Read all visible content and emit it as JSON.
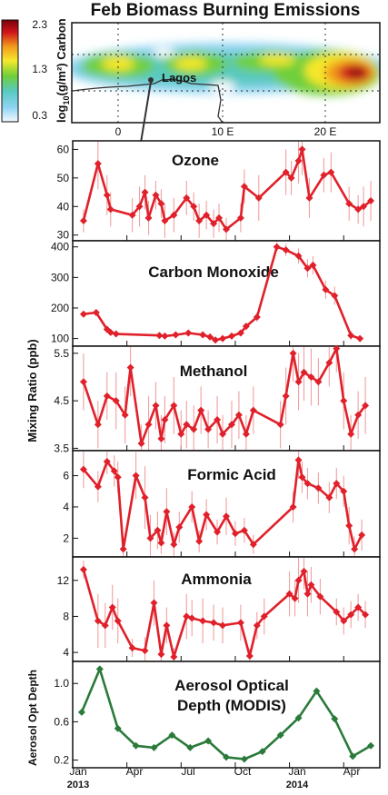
{
  "map": {
    "title": "Feb Biomass Burning Emissions",
    "colorbar_ticks": [
      "2.3",
      "1.3",
      "0.3"
    ],
    "colorbar_label_log": "log",
    "colorbar_label_sub": "10",
    "colorbar_label_rest": "(g/m²) Carbon",
    "city": "Lagos",
    "lon_ticks": [
      "0",
      "10 E",
      "20 E"
    ],
    "palette": [
      "#f4f8ff",
      "#8fd4f2",
      "#58c9c0",
      "#6fcf3a",
      "#f6e82c",
      "#f29a1e",
      "#d0141a",
      "#7a0008"
    ]
  },
  "shared": {
    "ylabel_mixing": "Mixing Ratio (ppb)",
    "ylabel_aod": "Aerosol Opt Depth",
    "x_ticks": [
      "Jan",
      "Apr",
      "Jul",
      "Oct",
      "Jan",
      "Apr"
    ],
    "x_years": [
      "2013",
      "2014"
    ]
  },
  "chart_data": [
    {
      "type": "line",
      "title": "Ozone",
      "ylabel": "Mixing Ratio (ppb)",
      "ylim": [
        28,
        63
      ],
      "yticks": [
        "30",
        "40",
        "50",
        "60"
      ],
      "color": "#e0202a",
      "x": [
        1.6,
        2.4,
        2.9,
        3.1,
        4.3,
        4.7,
        5.0,
        5.2,
        5.6,
        5.9,
        6.1,
        6.6,
        7.3,
        7.7,
        8.0,
        8.4,
        8.8,
        9.1,
        9.5,
        10.3,
        10.5,
        11.3,
        12.8,
        13.1,
        13.5,
        13.7,
        14.1,
        14.9,
        15.3,
        16.3,
        16.8,
        17.1,
        17.5
      ],
      "values": [
        35,
        55,
        44,
        39,
        37,
        40,
        45,
        36,
        44,
        41,
        35,
        37,
        43,
        40,
        35,
        37,
        34,
        36,
        32,
        36,
        47,
        43,
        52,
        50,
        56,
        60,
        43,
        51,
        52,
        41,
        39,
        40,
        42
      ],
      "errors": [
        4,
        9,
        7,
        6,
        6,
        7,
        6,
        6,
        5,
        5,
        6,
        6,
        6,
        5,
        6,
        5,
        5,
        5,
        4,
        5,
        6,
        8,
        8,
        6,
        8,
        9,
        7,
        6,
        7,
        6,
        5,
        7,
        7
      ]
    },
    {
      "type": "line",
      "title": "Carbon Monoxide",
      "ylabel": "Mixing Ratio (ppb)",
      "ylim": [
        75,
        420
      ],
      "yticks": [
        "100",
        "200",
        "300",
        "400"
      ],
      "color": "#e0202a",
      "x": [
        1.6,
        2.3,
        2.9,
        3.1,
        3.4,
        5.8,
        6.1,
        6.7,
        7.4,
        8.2,
        8.6,
        8.9,
        9.3,
        9.8,
        10.3,
        10.6,
        11.2,
        12.3,
        12.8,
        13.5,
        14.0,
        14.3,
        15.0,
        15.5,
        16.4,
        16.9
      ],
      "values": [
        180,
        185,
        130,
        120,
        115,
        110,
        108,
        112,
        118,
        112,
        105,
        95,
        100,
        108,
        118,
        140,
        170,
        400,
        390,
        370,
        330,
        340,
        260,
        240,
        110,
        100
      ],
      "errors": [
        6,
        6,
        10,
        10,
        10,
        8,
        8,
        8,
        8,
        8,
        8,
        8,
        8,
        10,
        10,
        12,
        15,
        15,
        20,
        25,
        30,
        30,
        30,
        30,
        15,
        10
      ]
    },
    {
      "type": "line",
      "title": "Methanol",
      "ylabel": "Mixing Ratio (ppb)",
      "ylim": [
        3.45,
        5.65
      ],
      "yticks": [
        "3.5",
        "4.5",
        "5.5"
      ],
      "color": "#e0202a",
      "x": [
        1.6,
        2.4,
        2.9,
        3.4,
        3.9,
        4.2,
        4.8,
        5.2,
        5.6,
        5.9,
        6.1,
        6.6,
        7.0,
        7.3,
        7.7,
        8.1,
        8.5,
        9.0,
        9.3,
        9.8,
        10.2,
        10.6,
        11.0,
        12.5,
        12.8,
        13.2,
        13.5,
        13.8,
        14.2,
        14.6,
        15.2,
        15.6,
        16.0,
        16.4,
        16.8,
        17.2
      ],
      "values": [
        4.9,
        4.0,
        4.6,
        4.5,
        4.2,
        5.2,
        3.6,
        4.0,
        4.4,
        3.7,
        4.1,
        4.4,
        3.8,
        4.0,
        3.9,
        4.3,
        3.9,
        4.1,
        3.8,
        4.0,
        4.2,
        3.8,
        4.3,
        4.0,
        4.6,
        5.5,
        4.9,
        5.1,
        5.0,
        4.9,
        5.3,
        5.6,
        4.5,
        3.8,
        4.2,
        4.4
      ],
      "errors": [
        0.6,
        0.5,
        0.5,
        0.6,
        0.6,
        0.6,
        0.4,
        0.6,
        0.5,
        0.5,
        0.5,
        0.6,
        0.5,
        0.5,
        0.5,
        0.5,
        0.4,
        0.5,
        0.4,
        0.5,
        0.5,
        0.4,
        0.5,
        0.5,
        0.6,
        0.6,
        0.6,
        0.6,
        0.6,
        0.5,
        0.5,
        0.5,
        0.6,
        0.4,
        0.5,
        0.6
      ]
    },
    {
      "type": "line",
      "title": "Formic Acid",
      "ylabel": "Mixing Ratio (ppb)",
      "ylim": [
        0.8,
        7.6
      ],
      "yticks": [
        "2",
        "4",
        "6"
      ],
      "color": "#e0202a",
      "x": [
        1.6,
        2.4,
        2.9,
        3.3,
        3.5,
        3.8,
        4.5,
        5.0,
        5.3,
        5.7,
        5.9,
        6.2,
        6.6,
        6.9,
        7.6,
        8.0,
        8.4,
        9.0,
        9.5,
        10.0,
        10.5,
        11.0,
        13.2,
        13.5,
        13.7,
        14.0,
        14.6,
        15.2,
        15.6,
        16.0,
        16.3,
        16.6,
        17.0
      ],
      "values": [
        6.4,
        5.3,
        6.9,
        6.3,
        5.9,
        1.3,
        6.0,
        4.6,
        2.0,
        2.5,
        1.7,
        3.7,
        1.6,
        2.7,
        4.0,
        1.8,
        3.5,
        2.4,
        3.4,
        2.3,
        2.5,
        1.6,
        4.0,
        7.0,
        5.9,
        5.5,
        5.2,
        4.6,
        5.5,
        5.0,
        2.8,
        1.3,
        2.2
      ],
      "errors": [
        1.2,
        1.0,
        0.8,
        1.0,
        1.0,
        0.7,
        1.5,
        2.0,
        1.5,
        1.2,
        0.7,
        1.5,
        0.8,
        1.0,
        1.0,
        0.7,
        1.0,
        0.8,
        1.2,
        0.8,
        0.8,
        0.6,
        1.0,
        1.2,
        1.0,
        1.0,
        1.0,
        1.0,
        1.0,
        1.0,
        1.2,
        0.8,
        1.0
      ]
    },
    {
      "type": "line",
      "title": "Ammonia",
      "ylabel": "Mixing Ratio (ppb)",
      "ylim": [
        3,
        14.6
      ],
      "yticks": [
        "4",
        "8",
        "12"
      ],
      "color": "#e0202a",
      "x": [
        1.6,
        2.4,
        2.8,
        3.2,
        3.5,
        4.3,
        5.0,
        5.5,
        5.9,
        6.2,
        6.6,
        7.3,
        7.6,
        8.2,
        8.8,
        9.3,
        10.3,
        10.8,
        11.2,
        11.6,
        13.0,
        13.3,
        13.5,
        13.8,
        14.0,
        14.2,
        14.7,
        15.6,
        16.0,
        16.4,
        16.8,
        17.2
      ],
      "values": [
        13.2,
        7.5,
        7.0,
        9.0,
        7.5,
        4.5,
        4.2,
        9.5,
        3.8,
        7.0,
        3.5,
        8.0,
        7.8,
        7.5,
        7.3,
        7.0,
        7.3,
        3.6,
        7.0,
        8.0,
        10.5,
        10.0,
        12.0,
        13.0,
        10.5,
        11.5,
        10.2,
        8.5,
        7.5,
        8.2,
        9.0,
        8.2
      ],
      "errors": [
        1.0,
        3.0,
        2.5,
        2.5,
        2.5,
        1.0,
        1.5,
        2.5,
        1.0,
        2.0,
        1.0,
        2.5,
        2.0,
        2.5,
        2.0,
        2.0,
        2.0,
        0.8,
        1.5,
        2.0,
        2.5,
        2.0,
        2.5,
        2.0,
        2.5,
        2.0,
        2.0,
        1.5,
        1.5,
        1.5,
        1.5,
        1.5
      ]
    },
    {
      "type": "line",
      "title": "Aerosol Optical",
      "title_line2": "Depth (MODIS)",
      "ylabel": "Aerosol Opt Depth",
      "ylim": [
        0.12,
        1.23
      ],
      "yticks": [
        "0.2",
        "0.6",
        "1.0"
      ],
      "color": "#2a7a3a",
      "x": [
        1.5,
        2.5,
        3.5,
        4.5,
        5.5,
        6.5,
        7.5,
        8.5,
        9.5,
        10.5,
        11.5,
        12.5,
        13.5,
        14.5,
        15.5,
        16.5,
        17.5
      ],
      "values": [
        0.7,
        1.15,
        0.53,
        0.35,
        0.33,
        0.46,
        0.33,
        0.4,
        0.23,
        0.21,
        0.29,
        0.46,
        0.64,
        0.92,
        0.63,
        0.24,
        0.35
      ]
    }
  ]
}
